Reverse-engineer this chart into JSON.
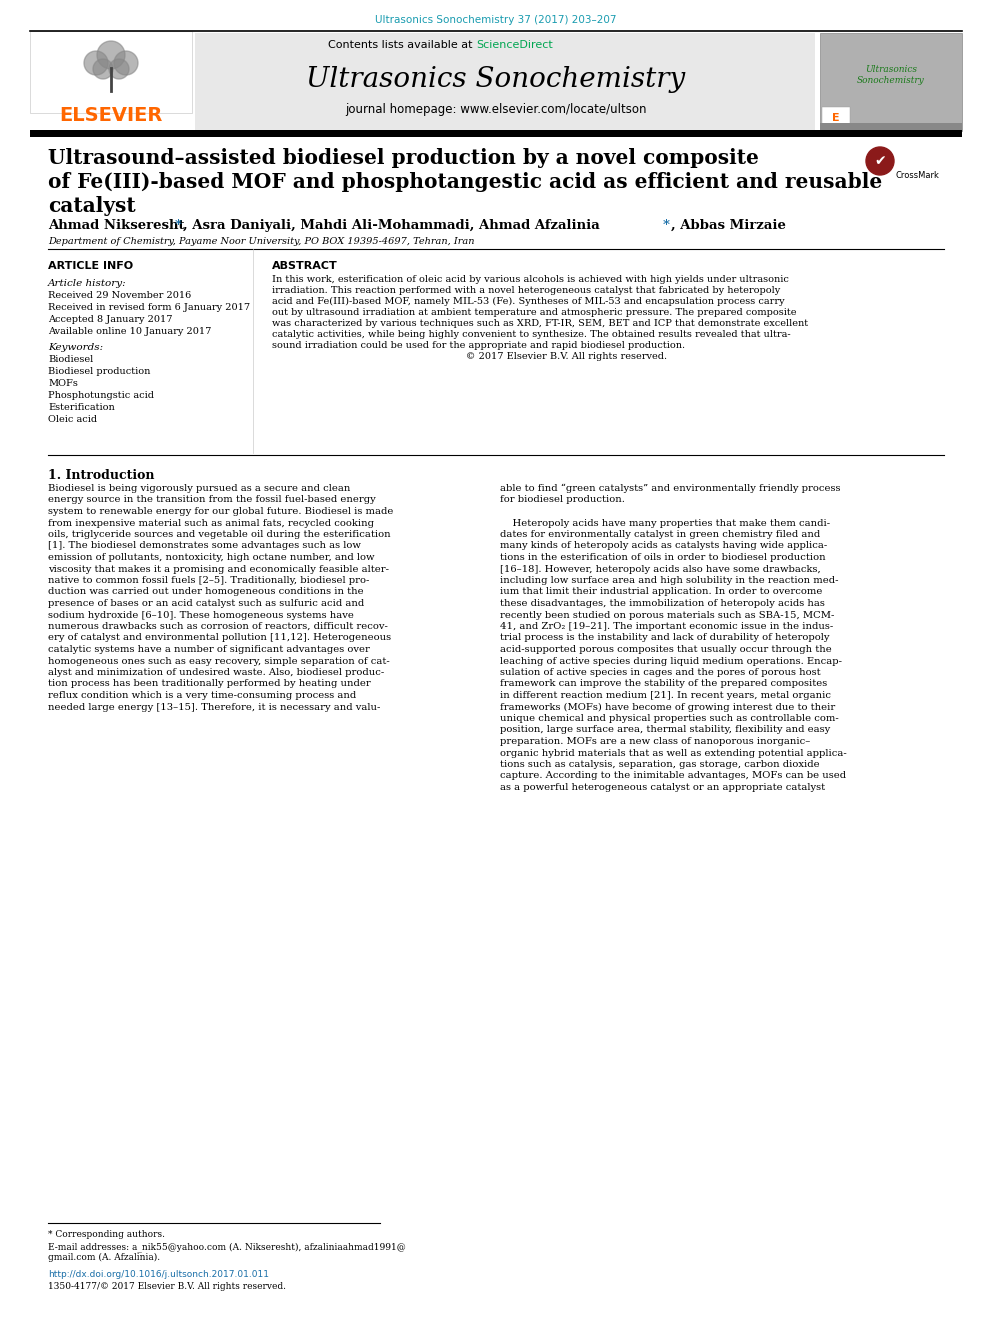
{
  "journal_ref": "Ultrasonics Sonochemistry 37 (2017) 203–207",
  "journal_ref_color": "#1a9cb0",
  "contents_text": "Contents lists available at ",
  "sciencedirect_text": "ScienceDirect",
  "sciencedirect_color": "#00a651",
  "journal_name": "Ultrasonics Sonochemistry",
  "journal_homepage": "journal homepage: www.elsevier.com/locate/ultson",
  "elsevier_color": "#ff6600",
  "header_bg": "#e8e8e8",
  "paper_title_line1": "Ultrasound–assisted biodiesel production by a novel composite",
  "paper_title_line2": "of Fe(III)-based MOF and phosphotangestic acid as efficient and reusable",
  "paper_title_line3": "catalyst",
  "affiliation": "Department of Chemistry, Payame Noor University, PO BOX 19395-4697, Tehran, Iran",
  "article_info_title": "ARTICLE INFO",
  "abstract_title": "ABSTRACT",
  "article_history_label": "Article history:",
  "history_lines": [
    "Received 29 November 2016",
    "Received in revised form 6 January 2017",
    "Accepted 8 January 2017",
    "Available online 10 January 2017"
  ],
  "keywords_label": "Keywords:",
  "keywords": [
    "Biodiesel",
    "Biodiesel production",
    "MOFs",
    "Phosphotungstic acid",
    "Esterification",
    "Oleic acid"
  ],
  "abstract_lines": [
    "In this work, esterification of oleic acid by various alcohols is achieved with high yields under ultrasonic",
    "irradiation. This reaction performed with a novel heterogeneous catalyst that fabricated by heteropoly",
    "acid and Fe(III)-based MOF, namely MIL-53 (Fe). Syntheses of MIL-53 and encapsulation process carry",
    "out by ultrasound irradiation at ambient temperature and atmospheric pressure. The prepared composite",
    "was characterized by various techniques such as XRD, FT-IR, SEM, BET and ICP that demonstrate excellent",
    "catalytic activities, while being highly convenient to synthesize. The obtained results revealed that ultra-",
    "sound irradiation could be used for the appropriate and rapid biodiesel production.",
    "                                                              © 2017 Elsevier B.V. All rights reserved."
  ],
  "intro_title": "1. Introduction",
  "col1_lines": [
    "Biodiesel is being vigorously pursued as a secure and clean",
    "energy source in the transition from the fossil fuel-based energy",
    "system to renewable energy for our global future. Biodiesel is made",
    "from inexpensive material such as animal fats, recycled cooking",
    "oils, triglyceride sources and vegetable oil during the esterification",
    "[1]. The biodiesel demonstrates some advantages such as low",
    "emission of pollutants, nontoxicity, high octane number, and low",
    "viscosity that makes it a promising and economically feasible alter-",
    "native to common fossil fuels [2–5]. Traditionally, biodiesel pro-",
    "duction was carried out under homogeneous conditions in the",
    "presence of bases or an acid catalyst such as sulfuric acid and",
    "sodium hydroxide [6–10]. These homogeneous systems have",
    "numerous drawbacks such as corrosion of reactors, difficult recov-",
    "ery of catalyst and environmental pollution [11,12]. Heterogeneous",
    "catalytic systems have a number of significant advantages over",
    "homogeneous ones such as easy recovery, simple separation of cat-",
    "alyst and minimization of undesired waste. Also, biodiesel produc-",
    "tion process has been traditionally performed by heating under",
    "reflux condition which is a very time-consuming process and",
    "needed large energy [13–15]. Therefore, it is necessary and valu-"
  ],
  "col2_lines": [
    "able to find “green catalysts” and environmentally friendly process",
    "for biodiesel production.",
    "",
    "    Heteropoly acids have many properties that make them candi-",
    "dates for environmentally catalyst in green chemistry filed and",
    "many kinds of heteropoly acids as catalysts having wide applica-",
    "tions in the esterification of oils in order to biodiesel production",
    "[16–18]. However, heteropoly acids also have some drawbacks,",
    "including low surface area and high solubility in the reaction med-",
    "ium that limit their industrial application. In order to overcome",
    "these disadvantages, the immobilization of heteropoly acids has",
    "recently been studied on porous materials such as SBA-15, MCM-",
    "41, and ZrO₂ [19–21]. The important economic issue in the indus-",
    "trial process is the instability and lack of durability of heteropoly",
    "acid-supported porous composites that usually occur through the",
    "leaching of active species during liquid medium operations. Encap-",
    "sulation of active species in cages and the pores of porous host",
    "framework can improve the stability of the prepared composites",
    "in different reaction medium [21]. In recent years, metal organic",
    "frameworks (MOFs) have become of growing interest due to their",
    "unique chemical and physical properties such as controllable com-",
    "position, large surface area, thermal stability, flexibility and easy",
    "preparation. MOFs are a new class of nanoporous inorganic–",
    "organic hybrid materials that as well as extending potential applica-",
    "tions such as catalysis, separation, gas storage, carbon dioxide",
    "capture. According to the inimitable advantages, MOFs can be used",
    "as a powerful heterogeneous catalyst or an appropriate catalyst"
  ],
  "footnote_star": "* Corresponding authors.",
  "footnote_email": "E-mail addresses: a_nik55@yahoo.com (A. Nikseresht), afzaliniaahmad1991@",
  "footnote_email2": "gmail.com (A. Afzalinia).",
  "doi_text": "http://dx.doi.org/10.1016/j.ultsonch.2017.01.011",
  "issn_text": "1350-4177/© 2017 Elsevier B.V. All rights reserved.",
  "doi_color": "#1a6fa8",
  "background": "#ffffff",
  "text_color": "#000000"
}
